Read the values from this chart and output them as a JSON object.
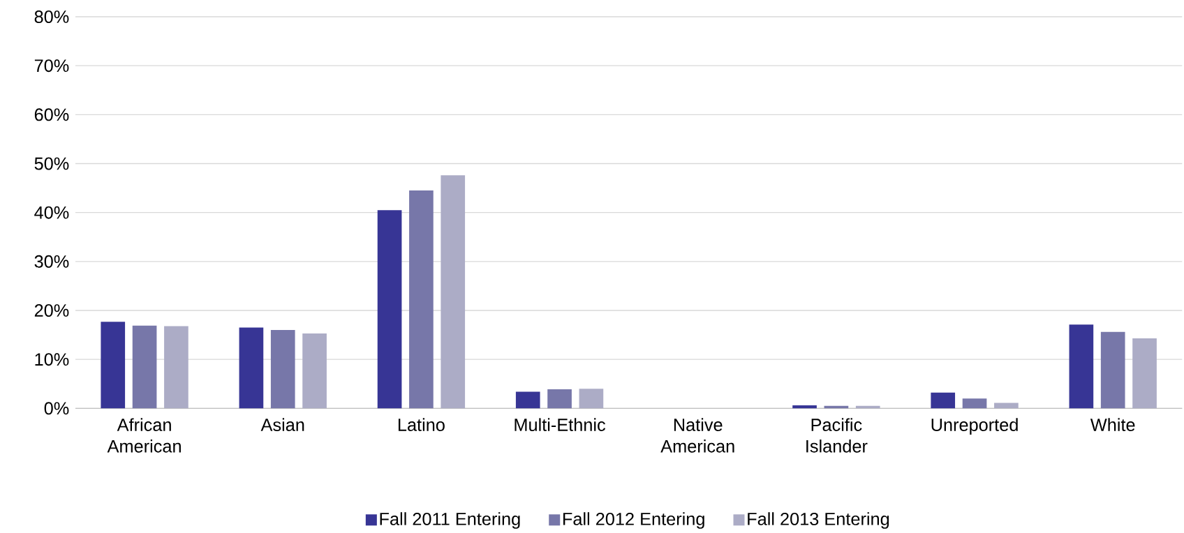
{
  "chart_data": {
    "type": "bar",
    "categories": [
      "African American",
      "Asian",
      "Latino",
      "Multi-Ethnic",
      "Native American",
      "Pacific Islander",
      "Unreported",
      "White"
    ],
    "series": [
      {
        "name": "Fall 2011 Entering",
        "color": "#373595",
        "values": [
          17.7,
          16.5,
          40.5,
          3.4,
          0,
          0.6,
          3.2,
          17.1
        ]
      },
      {
        "name": "Fall 2012 Entering",
        "color": "#7777a9",
        "values": [
          16.9,
          16.0,
          44.5,
          3.9,
          0,
          0.5,
          2.0,
          15.6
        ]
      },
      {
        "name": "Fall 2013 Entering",
        "color": "#acacc6",
        "values": [
          16.8,
          15.3,
          47.6,
          4.0,
          0,
          0.5,
          1.1,
          14.3
        ]
      }
    ],
    "ylim": [
      0,
      80
    ],
    "yticks": [
      {
        "value": 0,
        "label": "0%"
      },
      {
        "value": 10,
        "label": "10%"
      },
      {
        "value": 20,
        "label": "20%"
      },
      {
        "value": 30,
        "label": "30%"
      },
      {
        "value": 40,
        "label": "40%"
      },
      {
        "value": 50,
        "label": "50%"
      },
      {
        "value": 60,
        "label": "60%"
      },
      {
        "value": 70,
        "label": "70%"
      },
      {
        "value": 80,
        "label": "80%"
      }
    ],
    "grid": "y",
    "legend": "bottom"
  }
}
